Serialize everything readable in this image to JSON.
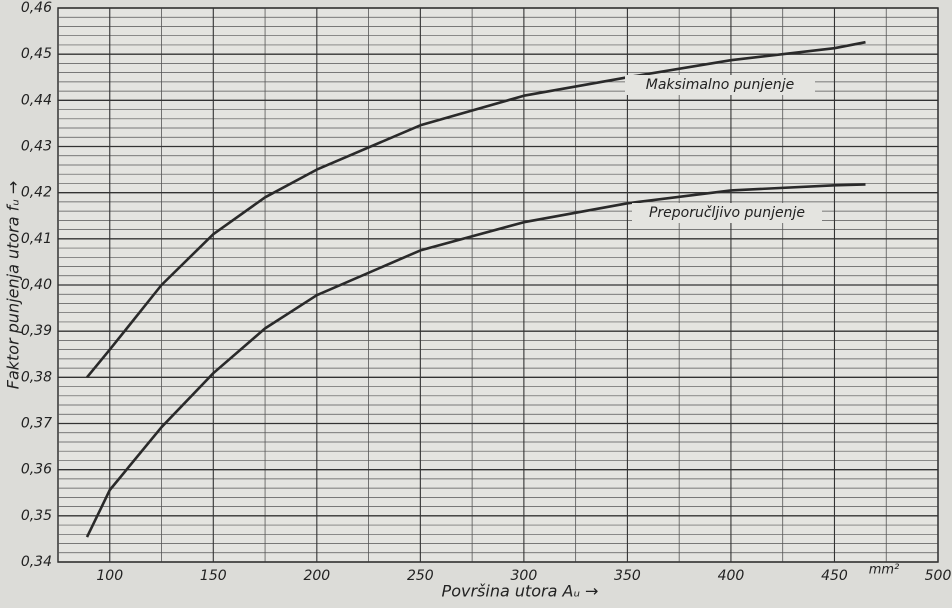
{
  "chart_data": {
    "type": "line",
    "x_label": "Površina utora Aᵤ →",
    "y_label": "Faktor punjenja utora fᵤ →",
    "x_unit": "mm²",
    "x": [
      89,
      100,
      125,
      150,
      175,
      200,
      250,
      300,
      350,
      400,
      450,
      465
    ],
    "series": [
      {
        "name": "Maksimalno punjenje",
        "color": "#2a2a2a",
        "values": [
          0.38,
          0.386,
          0.4,
          0.411,
          0.419,
          0.425,
          0.4346,
          0.441,
          0.445,
          0.4487,
          0.4513,
          0.4526
        ]
      },
      {
        "name": "Preporučljivo punjenje",
        "color": "#2a2a2a",
        "values": [
          0.3454,
          0.3556,
          0.3692,
          0.3809,
          0.3906,
          0.3978,
          0.4075,
          0.4136,
          0.4177,
          0.4205,
          0.4216,
          0.4218
        ]
      }
    ],
    "xlim": [
      75,
      500
    ],
    "ylim": [
      0.34,
      0.46
    ],
    "xticks": [
      100,
      150,
      200,
      250,
      300,
      350,
      400,
      450,
      500
    ],
    "yticks": [
      {
        "value": 0.34,
        "label": "0,34"
      },
      {
        "value": 0.35,
        "label": "0,35"
      },
      {
        "value": 0.36,
        "label": "0,36"
      },
      {
        "value": 0.37,
        "label": "0,37"
      },
      {
        "value": 0.38,
        "label": "0,38"
      },
      {
        "value": 0.39,
        "label": "0,39"
      },
      {
        "value": 0.4,
        "label": "0,40"
      },
      {
        "value": 0.41,
        "label": "0,41"
      },
      {
        "value": 0.42,
        "label": "0,42"
      },
      {
        "value": 0.43,
        "label": "0,43"
      },
      {
        "value": 0.44,
        "label": "0,44"
      },
      {
        "value": 0.45,
        "label": "0,45"
      },
      {
        "value": 0.46,
        "label": "0,46"
      }
    ],
    "x_minor_grid": [
      125,
      175,
      225,
      275,
      325,
      375,
      425,
      475
    ],
    "y_minor_grid": [
      0.342,
      0.344,
      0.346,
      0.348,
      0.352,
      0.354,
      0.356,
      0.358,
      0.362,
      0.364,
      0.366,
      0.368,
      0.372,
      0.374,
      0.376,
      0.378,
      0.382,
      0.384,
      0.386,
      0.388,
      0.392,
      0.394,
      0.396,
      0.398,
      0.402,
      0.404,
      0.406,
      0.408,
      0.412,
      0.414,
      0.416,
      0.418,
      0.422,
      0.424,
      0.426,
      0.428,
      0.432,
      0.434,
      0.436,
      0.438,
      0.442,
      0.444,
      0.446,
      0.448,
      0.452,
      0.454,
      0.456,
      0.458
    ],
    "grid": true
  }
}
